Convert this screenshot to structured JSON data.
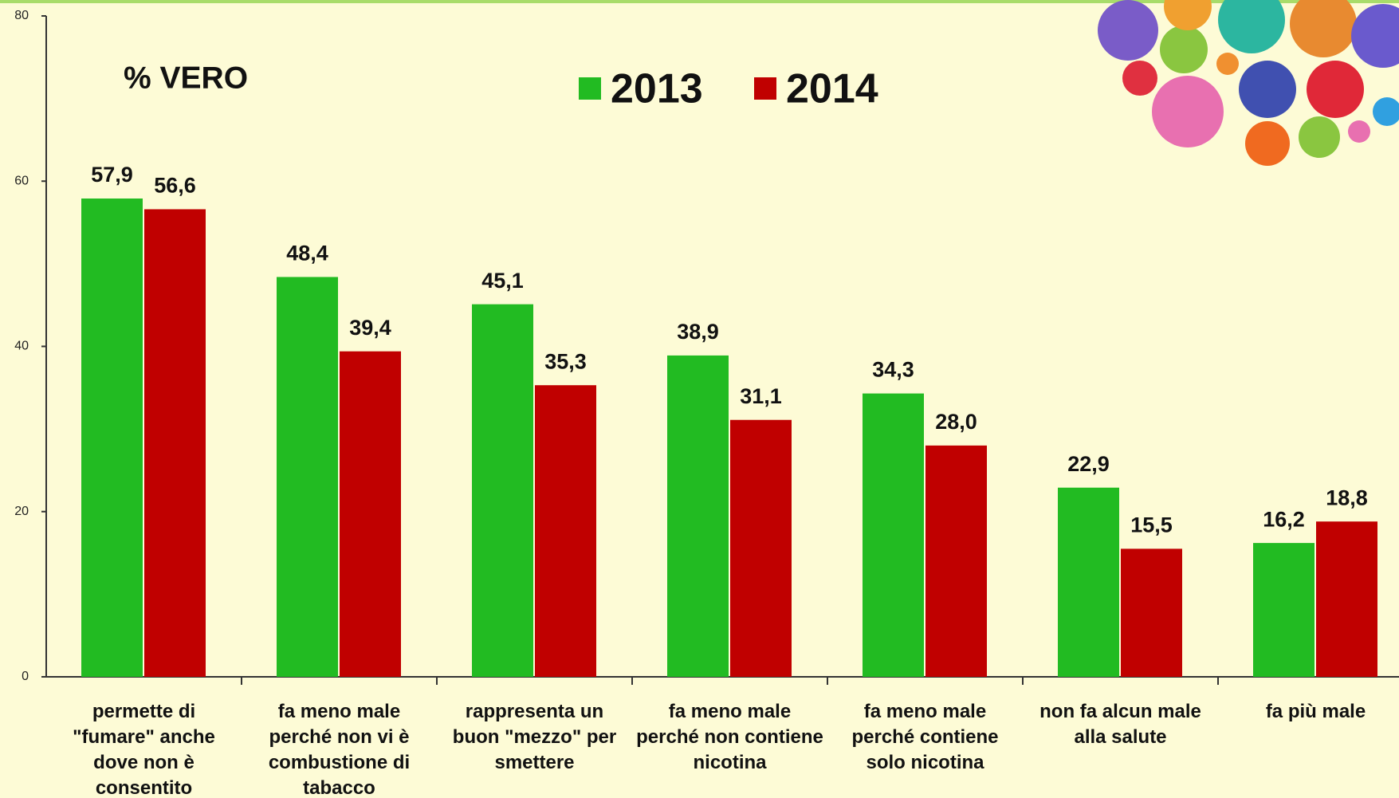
{
  "chart_data": {
    "type": "bar",
    "ylabel": "% VERO",
    "categories": [
      "permette di \"fumare\" anche dove non è consentito",
      "fa meno male perché non vi è combustione di tabacco",
      "rappresenta un buon \"mezzo\" per smettere",
      "fa meno male perché non contiene nicotina",
      "fa meno male perché contiene solo nicotina",
      "non fa alcun male alla salute",
      "fa più male"
    ],
    "series": [
      {
        "name": "2013",
        "color": "#22bb22",
        "values": [
          57.9,
          48.4,
          45.1,
          38.9,
          34.3,
          22.9,
          16.2
        ],
        "value_labels": [
          "57,9",
          "48,4",
          "45,1",
          "38,9",
          "34,3",
          "22,9",
          "16,2"
        ]
      },
      {
        "name": "2014",
        "color": "#c00000",
        "values": [
          56.6,
          39.4,
          35.3,
          31.1,
          28.0,
          15.5,
          18.8
        ],
        "value_labels": [
          "56,6",
          "39,4",
          "35,3",
          "31,1",
          "28,0",
          "15,5",
          "18,8"
        ]
      }
    ],
    "ylim": [
      0,
      80
    ],
    "yticks": [
      0,
      20,
      40,
      60,
      80
    ],
    "legend": "top"
  }
}
